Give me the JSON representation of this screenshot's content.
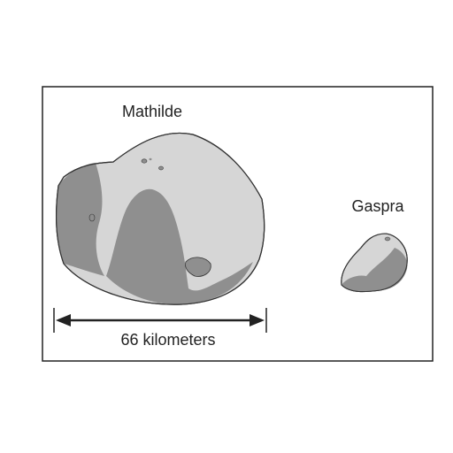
{
  "figure": {
    "labels": {
      "mathilde": "Mathilde",
      "gaspra": "Gaspra",
      "scale": "66 kilometers"
    },
    "colors": {
      "frame": "#222222",
      "asteroid_light": "#d6d6d6",
      "asteroid_dark": "#8f8f8f",
      "outline": "#333333",
      "text": "#222222"
    }
  }
}
